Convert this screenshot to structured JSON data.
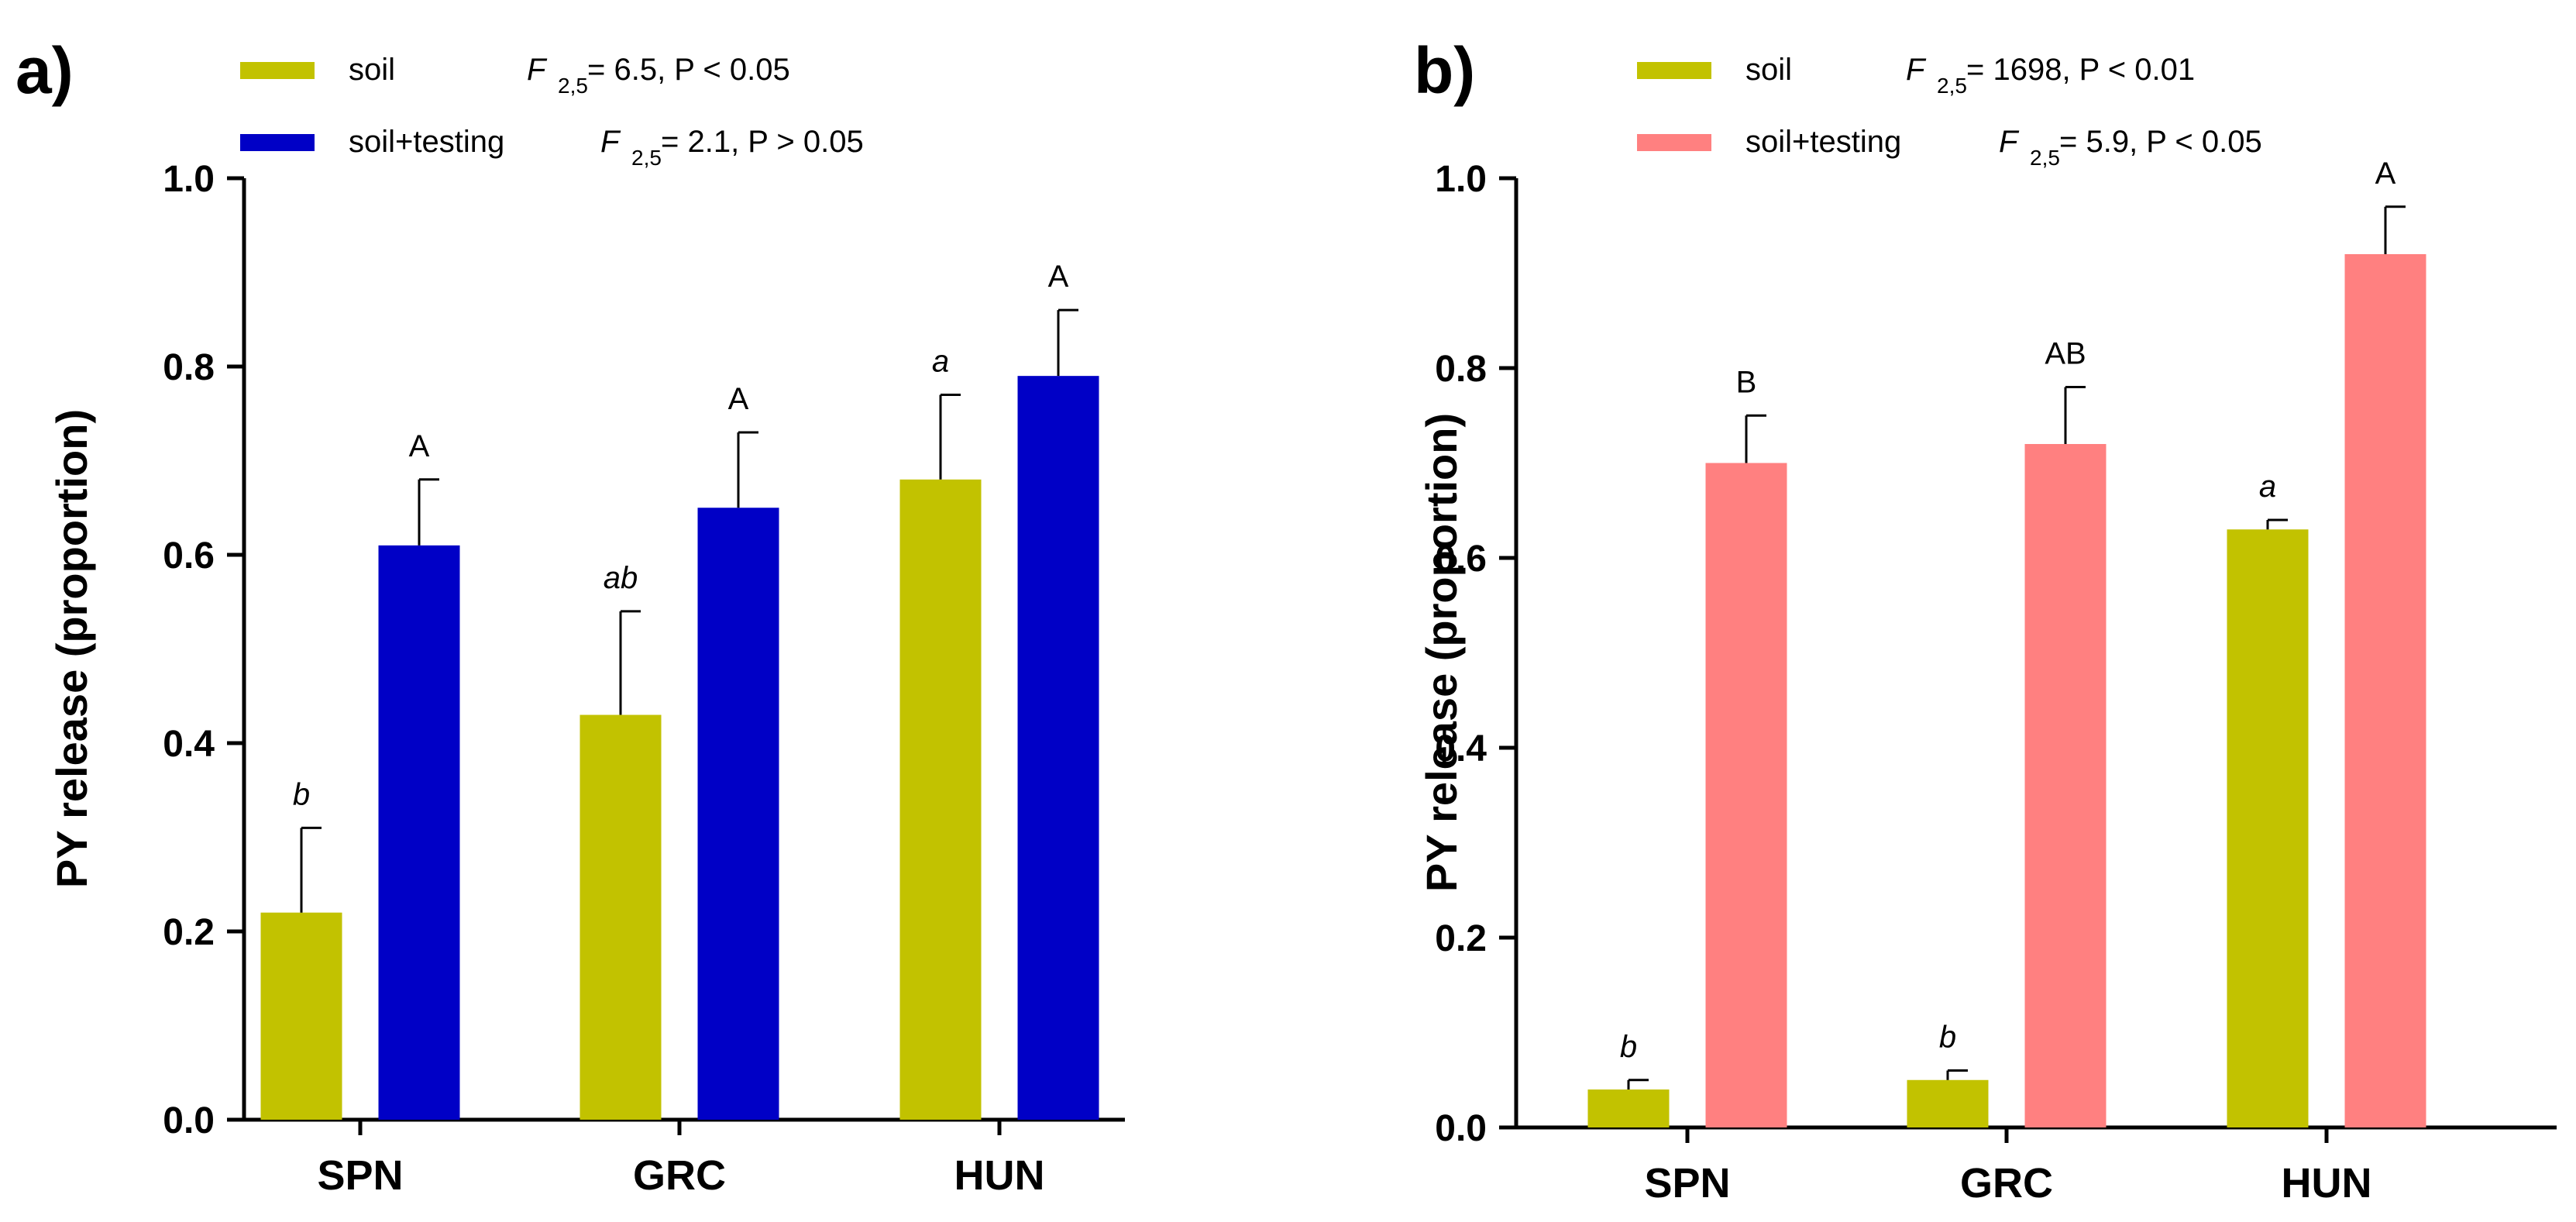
{
  "chart_data": [
    {
      "type": "bar",
      "panel_label": "a)",
      "ylabel": "PY release (proportion)",
      "ylim": [
        0,
        1.0
      ],
      "yticks": [
        "0.0",
        "0.2",
        "0.4",
        "0.6",
        "0.8",
        "1.0"
      ],
      "ytick_values": [
        0,
        0.2,
        0.4,
        0.6,
        0.8,
        1.0
      ],
      "categories": [
        "SPN",
        "GRC",
        "HUN"
      ],
      "legend": [
        {
          "name": "soil",
          "color": "#c2c200",
          "stat_f": "F",
          "stat_sub": "2,5",
          "stat_rest": " = 6.5, P < 0.05"
        },
        {
          "name": "soil+testing",
          "color": "#0000c6",
          "stat_f": "F",
          "stat_sub": "2,5",
          "stat_rest": " = 2.1, P > 0.05"
        }
      ],
      "series": [
        {
          "name": "soil",
          "color": "#c2c200",
          "values": [
            0.22,
            0.43,
            0.68
          ],
          "errors": [
            0.09,
            0.11,
            0.09
          ],
          "letters": [
            "b",
            "ab",
            "a"
          ],
          "letters_italic": true
        },
        {
          "name": "soil+testing",
          "color": "#0000c6",
          "values": [
            0.61,
            0.65,
            0.79
          ],
          "errors": [
            0.07,
            0.08,
            0.07
          ],
          "letters": [
            "A",
            "A",
            "A"
          ],
          "letters_italic": false
        }
      ]
    },
    {
      "type": "bar",
      "panel_label": "b)",
      "ylabel": "PY release (proportion)",
      "ylim": [
        0,
        1.0
      ],
      "yticks": [
        "0.0",
        "0.2",
        "0.4",
        "0.6",
        "0.8",
        "1.0"
      ],
      "ytick_values": [
        0,
        0.2,
        0.4,
        0.6,
        0.8,
        1.0
      ],
      "categories": [
        "SPN",
        "GRC",
        "HUN"
      ],
      "legend": [
        {
          "name": "soil",
          "color": "#c2c200",
          "stat_f": "F",
          "stat_sub": "2,5",
          "stat_rest": " = 1698, P < 0.01"
        },
        {
          "name": "soil+testing",
          "color": "#ff8080",
          "stat_f": "F",
          "stat_sub": "2,5",
          "stat_rest": " = 5.9, P < 0.05"
        }
      ],
      "series": [
        {
          "name": "soil",
          "color": "#c2c200",
          "values": [
            0.04,
            0.05,
            0.63
          ],
          "errors": [
            0.01,
            0.01,
            0.01
          ],
          "letters": [
            "b",
            "b",
            "a"
          ],
          "letters_italic": true
        },
        {
          "name": "soil+testing",
          "color": "#ff8080",
          "values": [
            0.7,
            0.72,
            0.92
          ],
          "errors": [
            0.05,
            0.06,
            0.05
          ],
          "letters": [
            "B",
            "AB",
            "A"
          ],
          "letters_italic": false
        }
      ]
    }
  ]
}
